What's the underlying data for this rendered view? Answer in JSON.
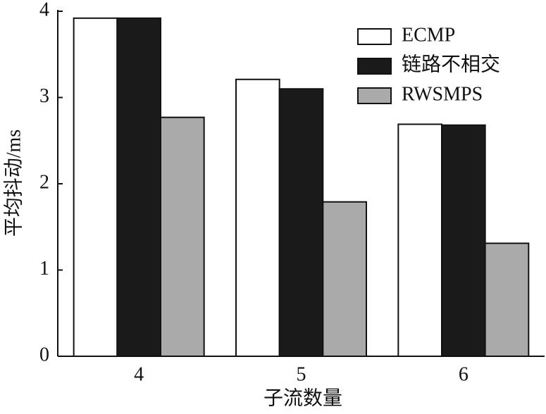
{
  "chart_data": {
    "type": "bar",
    "xlabel": "子流数量",
    "ylabel": "平均抖动/ms",
    "categories": [
      "4",
      "5",
      "6"
    ],
    "series": [
      {
        "name": "ECMP",
        "color": "#ffffff",
        "values": [
          3.92,
          3.21,
          2.69
        ]
      },
      {
        "name": "链路不相交",
        "color": "#1a1a1a",
        "values": [
          3.92,
          3.1,
          2.68
        ]
      },
      {
        "name": "RWSMPS",
        "color": "#aaaaaa",
        "values": [
          2.77,
          1.79,
          1.31
        ]
      }
    ],
    "ylim": [
      0,
      4
    ],
    "yticks": [
      0,
      1,
      2,
      3,
      4
    ],
    "grid": false,
    "legend": "upper right"
  }
}
